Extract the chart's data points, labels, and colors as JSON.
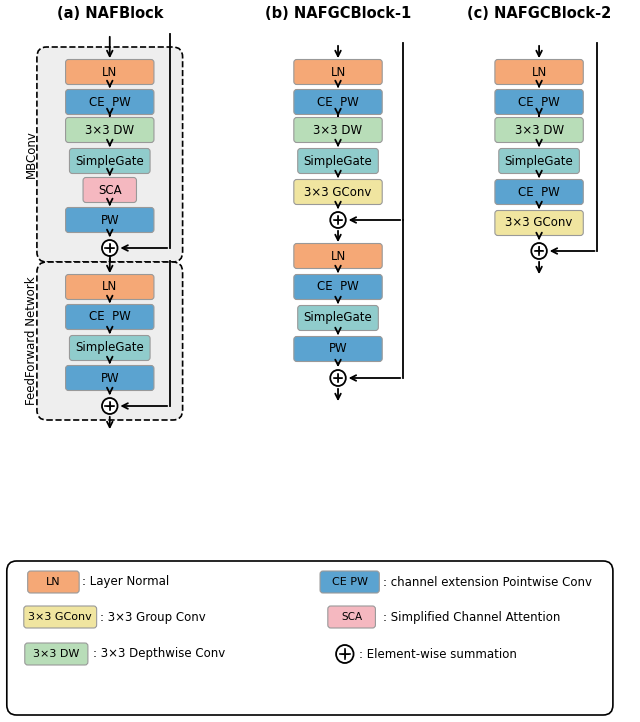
{
  "title_a": "(a) NAFBlock",
  "title_b": "(b) NAFGCBlock-1",
  "title_c": "(c) NAFGCBlock-2",
  "colors": {
    "orange": "#F5A876",
    "blue": "#5BA3D0",
    "green": "#B8DDB8",
    "yellow": "#F0E5A0",
    "teal": "#90CCCC",
    "pink": "#F5B8C0",
    "white": "#FFFFFF",
    "bg_box": "#F0F0F0"
  }
}
